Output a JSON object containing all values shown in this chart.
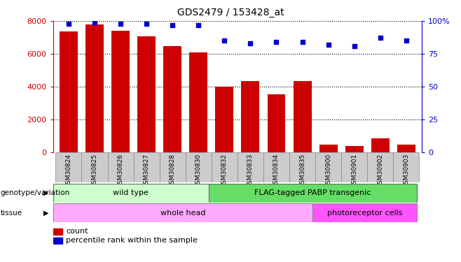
{
  "title": "GDS2479 / 153428_at",
  "samples": [
    "GSM30824",
    "GSM30825",
    "GSM30826",
    "GSM30827",
    "GSM30828",
    "GSM30830",
    "GSM30832",
    "GSM30833",
    "GSM30834",
    "GSM30835",
    "GSM30900",
    "GSM30901",
    "GSM30902",
    "GSM30903"
  ],
  "counts": [
    7350,
    7800,
    7400,
    7050,
    6450,
    6100,
    4000,
    4350,
    3500,
    4350,
    450,
    380,
    850,
    450
  ],
  "percentiles": [
    98,
    99,
    98,
    98,
    97,
    97,
    85,
    83,
    84,
    84,
    82,
    81,
    87,
    85
  ],
  "bar_color": "#cc0000",
  "dot_color": "#0000cc",
  "ylim_left": [
    0,
    8000
  ],
  "ylim_right": [
    0,
    100
  ],
  "yticks_left": [
    0,
    2000,
    4000,
    6000,
    8000
  ],
  "yticks_right": [
    0,
    25,
    50,
    75,
    100
  ],
  "ytick_labels_right": [
    "0",
    "25",
    "50",
    "75",
    "100%"
  ],
  "groups": [
    {
      "label": "wild type",
      "start": 0,
      "end": 6,
      "color": "#ccffcc",
      "dark_color": "#55cc55"
    },
    {
      "label": "FLAG-tagged PABP transgenic",
      "start": 6,
      "end": 14,
      "color": "#66dd66",
      "dark_color": "#22aa22"
    }
  ],
  "tissues": [
    {
      "label": "whole head",
      "start": 0,
      "end": 10,
      "color": "#ffaaff"
    },
    {
      "label": "photoreceptor cells",
      "start": 10,
      "end": 14,
      "color": "#ff55ff"
    }
  ],
  "legend_items": [
    {
      "color": "#cc0000",
      "label": "count"
    },
    {
      "color": "#0000cc",
      "label": "percentile rank within the sample"
    }
  ],
  "bar_width": 0.7,
  "title_color": "#000000",
  "left_axis_color": "#cc0000",
  "right_axis_color": "#0000cc",
  "xtick_bg": "#cccccc"
}
